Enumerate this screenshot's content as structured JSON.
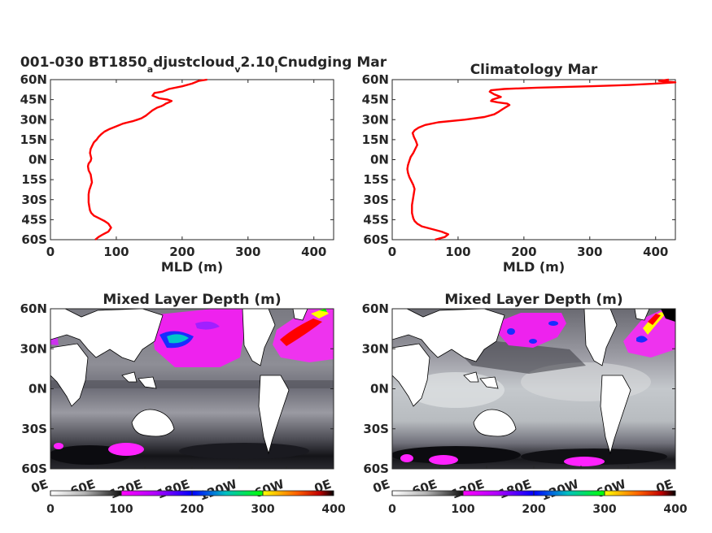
{
  "chart_data": [
    {
      "type": "line",
      "title": "001-030 BT1850",
      "title_parts": [
        "001-030 BT1850",
        "a",
        "djustcloud",
        "v",
        "2.10",
        "l",
        "Cnudging Mar"
      ],
      "xlabel": "MLD (m)",
      "ylabel": "",
      "xlim": [
        0,
        430
      ],
      "ylim": [
        -60,
        60
      ],
      "xticks": [
        0,
        100,
        200,
        300,
        400
      ],
      "yticks": [
        -60,
        -45,
        -30,
        -15,
        0,
        15,
        30,
        45,
        60
      ],
      "ytick_labels": [
        "60S",
        "45S",
        "30S",
        "15S",
        "0N",
        "15N",
        "30N",
        "45N",
        "60N"
      ],
      "series": [
        {
          "color": "#ff0000",
          "x": [
            68,
            73,
            80,
            88,
            92,
            88,
            82,
            74,
            66,
            62,
            60,
            59,
            58,
            58,
            58,
            59,
            61,
            63,
            62,
            61,
            58,
            57,
            58,
            61,
            62,
            61,
            60,
            61,
            64,
            66,
            70,
            73,
            77,
            82,
            90,
            100,
            110,
            118,
            126,
            132,
            138,
            145,
            150,
            155,
            162,
            168,
            172,
            175,
            180,
            184,
            178,
            165,
            155,
            158,
            170,
            180,
            200,
            215,
            225,
            238
          ],
          "y": [
            -60,
            -58,
            -56,
            -54,
            -51,
            -48,
            -46,
            -44,
            -42,
            -40,
            -38,
            -35,
            -32,
            -29,
            -26,
            -23,
            -20,
            -17,
            -14,
            -11,
            -8,
            -5,
            -3,
            -1,
            1,
            3,
            5,
            8,
            11,
            13,
            15,
            17,
            19,
            21,
            23,
            25,
            27,
            28,
            29,
            30,
            31,
            33,
            35,
            37,
            39,
            40,
            41,
            42,
            43,
            44,
            45,
            46,
            48,
            50,
            51,
            53,
            55,
            57,
            59,
            60
          ]
        }
      ]
    },
    {
      "type": "line",
      "title": "Climatology Mar",
      "xlabel": "MLD (m)",
      "ylabel": "",
      "xlim": [
        0,
        430
      ],
      "ylim": [
        -60,
        60
      ],
      "xticks": [
        0,
        100,
        200,
        300,
        400
      ],
      "yticks": [
        -60,
        -45,
        -30,
        -15,
        0,
        15,
        30,
        45,
        60
      ],
      "ytick_labels": [
        "60S",
        "45S",
        "30S",
        "15S",
        "0N",
        "15N",
        "30N",
        "45N",
        "60N"
      ],
      "series": [
        {
          "color": "#ff0000",
          "x": [
            65,
            80,
            85,
            75,
            60,
            45,
            38,
            34,
            32,
            31,
            30,
            30,
            30,
            31,
            32,
            33,
            34,
            32,
            29,
            26,
            24,
            23,
            24,
            26,
            28,
            32,
            35,
            38,
            36,
            33,
            31,
            34,
            40,
            50,
            70,
            110,
            140,
            155,
            162,
            168,
            178,
            175,
            160,
            150,
            152,
            165,
            155,
            148,
            150,
            170,
            220,
            300,
            360,
            400,
            430,
            405,
            420
          ],
          "y": [
            -60,
            -58,
            -56,
            -54,
            -52,
            -50,
            -48,
            -46,
            -44,
            -42,
            -40,
            -37,
            -34,
            -31,
            -28,
            -25,
            -22,
            -19,
            -16,
            -13,
            -10,
            -7,
            -4,
            -1,
            2,
            5,
            8,
            11,
            14,
            17,
            20,
            22,
            24,
            26,
            28,
            30,
            32,
            34,
            36,
            38,
            41,
            42,
            43,
            44,
            45,
            47,
            49,
            51,
            52,
            53,
            54,
            55,
            56,
            57,
            58,
            59,
            60
          ]
        }
      ]
    },
    {
      "type": "heatmap",
      "title": "Mixed Layer Depth (m)",
      "xticks": [
        "0E",
        "60E",
        "120E",
        "180E",
        "120W",
        "60W",
        "0E"
      ],
      "yticks": [
        "60N",
        "30N",
        "0N",
        "30S",
        "60S"
      ],
      "colorbar_ticks": [
        0,
        100,
        200,
        300,
        400
      ],
      "clim": [
        0,
        400
      ]
    },
    {
      "type": "heatmap",
      "title": "Mixed Layer Depth (m)",
      "xticks": [
        "0E",
        "60E",
        "120E",
        "180E",
        "120W",
        "60W",
        "0E"
      ],
      "yticks": [
        "60N",
        "30N",
        "0N",
        "30S",
        "60S"
      ],
      "colorbar_ticks": [
        0,
        100,
        200,
        300,
        400
      ],
      "clim": [
        0,
        400
      ]
    }
  ],
  "colors": {
    "line": "#ff0000",
    "axis": "#262626",
    "colormap": [
      "#ffffff",
      "#b4b4b4",
      "#000000",
      "#ff00ff",
      "#8000ff",
      "#0000ff",
      "#00c0c0",
      "#00ff00",
      "#ffff00",
      "#ff8000",
      "#ff0000",
      "#000000"
    ]
  }
}
